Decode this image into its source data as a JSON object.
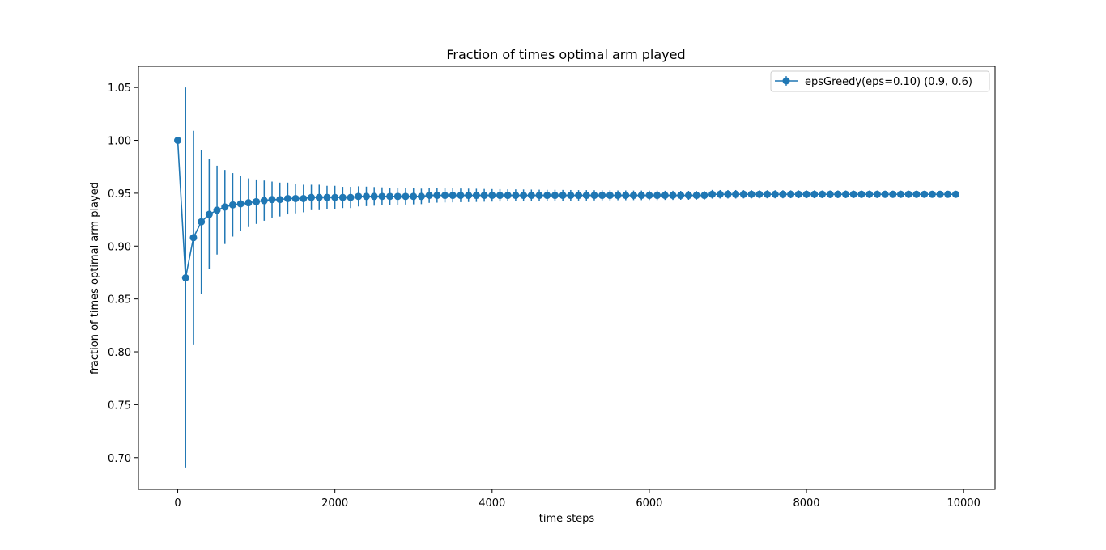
{
  "chart_data": {
    "type": "line",
    "title": "Fraction of times optimal arm played",
    "xlabel": "time steps",
    "ylabel": "fraction of times optimal arm played",
    "xlim": [
      -500,
      10400
    ],
    "ylim": [
      0.67,
      1.07
    ],
    "xticks": [
      0,
      2000,
      4000,
      6000,
      8000,
      10000
    ],
    "yticks": [
      0.7,
      0.75,
      0.8,
      0.85,
      0.9,
      0.95,
      1.0,
      1.05
    ],
    "grid": false,
    "legend_position": "top-right",
    "series": [
      {
        "name": "epsGreedy(eps=0.10) (0.9, 0.6)",
        "color": "#1f77b4",
        "marker": "circle",
        "error_bars": true,
        "x": [
          0,
          100,
          200,
          300,
          400,
          500,
          600,
          700,
          800,
          900,
          1000,
          1100,
          1200,
          1300,
          1400,
          1500,
          1600,
          1700,
          1800,
          1900,
          2000,
          2100,
          2200,
          2300,
          2400,
          2500,
          2600,
          2700,
          2800,
          2900,
          3000,
          3100,
          3200,
          3300,
          3400,
          3500,
          3600,
          3700,
          3800,
          3900,
          4000,
          4100,
          4200,
          4300,
          4400,
          4500,
          4600,
          4700,
          4800,
          4900,
          5000,
          5100,
          5200,
          5300,
          5400,
          5500,
          5600,
          5700,
          5800,
          5900,
          6000,
          6100,
          6200,
          6300,
          6400,
          6500,
          6600,
          6700,
          6800,
          6900,
          7000,
          7100,
          7200,
          7300,
          7400,
          7500,
          7600,
          7700,
          7800,
          7900,
          8000,
          8100,
          8200,
          8300,
          8400,
          8500,
          8600,
          8700,
          8800,
          8900,
          9000,
          9100,
          9200,
          9300,
          9400,
          9500,
          9600,
          9700,
          9800,
          9900
        ],
        "y": [
          1.0,
          0.87,
          0.908,
          0.923,
          0.93,
          0.934,
          0.937,
          0.939,
          0.94,
          0.941,
          0.942,
          0.943,
          0.944,
          0.944,
          0.945,
          0.945,
          0.945,
          0.946,
          0.946,
          0.946,
          0.946,
          0.946,
          0.946,
          0.947,
          0.947,
          0.947,
          0.947,
          0.947,
          0.947,
          0.947,
          0.947,
          0.947,
          0.948,
          0.948,
          0.948,
          0.948,
          0.948,
          0.948,
          0.948,
          0.948,
          0.948,
          0.948,
          0.948,
          0.948,
          0.948,
          0.948,
          0.948,
          0.948,
          0.948,
          0.948,
          0.948,
          0.948,
          0.948,
          0.948,
          0.948,
          0.948,
          0.948,
          0.948,
          0.948,
          0.948,
          0.948,
          0.948,
          0.948,
          0.948,
          0.948,
          0.948,
          0.948,
          0.948,
          0.949,
          0.949,
          0.949,
          0.949,
          0.949,
          0.949,
          0.949,
          0.949,
          0.949,
          0.949,
          0.949,
          0.949,
          0.949,
          0.949,
          0.949,
          0.949,
          0.949,
          0.949,
          0.949,
          0.949,
          0.949,
          0.949,
          0.949,
          0.949,
          0.949,
          0.949,
          0.949,
          0.949,
          0.949,
          0.949,
          0.949,
          0.949
        ],
        "error": [
          0.0,
          0.18,
          0.101,
          0.068,
          0.052,
          0.042,
          0.035,
          0.03,
          0.026,
          0.023,
          0.021,
          0.019,
          0.017,
          0.016,
          0.015,
          0.014,
          0.013,
          0.012,
          0.012,
          0.011,
          0.011,
          0.01,
          0.01,
          0.0095,
          0.0092,
          0.0088,
          0.0085,
          0.0082,
          0.0079,
          0.0077,
          0.0075,
          0.0073,
          0.0071,
          0.0069,
          0.0067,
          0.0066,
          0.0064,
          0.0063,
          0.0062,
          0.006,
          0.0059,
          0.0058,
          0.0057,
          0.0056,
          0.0055,
          0.0054,
          0.0053,
          0.0052,
          0.0052,
          0.0051,
          0.005,
          0.0049,
          0.0049,
          0.0048,
          0.0047,
          0.0047,
          0.0046,
          0.0046,
          0.0045,
          0.0045,
          0.0044,
          0.0044,
          0.0043,
          0.0043,
          0.0042,
          0.0042,
          0.0041,
          0.0041,
          0.0041,
          0.004,
          0.004,
          0.004,
          0.0039,
          0.0039,
          0.0039,
          0.0038,
          0.0038,
          0.0038,
          0.0037,
          0.0037,
          0.0037,
          0.0037,
          0.0036,
          0.0036,
          0.0036,
          0.0036,
          0.0035,
          0.0035,
          0.0035,
          0.0035,
          0.0034,
          0.0034,
          0.0034,
          0.0034,
          0.0034,
          0.0033,
          0.0033,
          0.0033,
          0.0033,
          0.0033
        ]
      }
    ]
  }
}
